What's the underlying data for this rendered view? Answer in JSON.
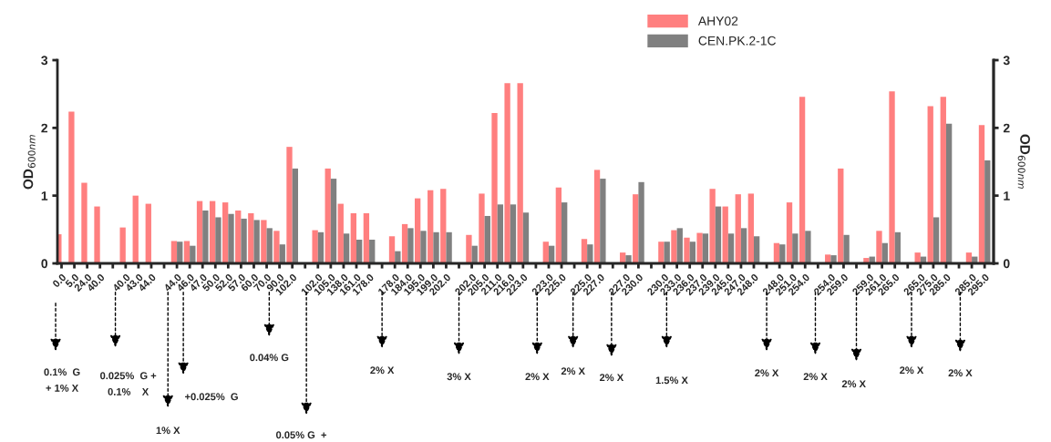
{
  "chart_data": {
    "type": "bar",
    "categories": [
      "0.0",
      "5.0",
      "24.0",
      "40.0",
      null,
      "40.0",
      "43.0",
      "44.0",
      null,
      "44.0",
      "46.0",
      "47.0",
      "50.0",
      "52.0",
      "57.0",
      "60.0",
      "70.0",
      "90.0",
      "102.0",
      null,
      "102.0",
      "105.0",
      "138.0",
      "161.0",
      "178.0",
      null,
      "178.0",
      "184.0",
      "195.0",
      "199.0",
      "202.0",
      null,
      "202.0",
      "205.0",
      "211.0",
      "216.0",
      "223.0",
      null,
      "223.0",
      "225.0",
      null,
      "225.0",
      "227.0",
      null,
      "227.0",
      "230.0",
      null,
      "230.0",
      "233.0",
      "236.0",
      "237.0",
      "239.0",
      "245.0",
      "247.0",
      "248.0",
      null,
      "248.0",
      "251.0",
      "254.0",
      null,
      "254.0",
      "259.0",
      null,
      "259.0",
      "261.0",
      "265.0",
      null,
      "265.0",
      "275.0",
      "285.0",
      null,
      "285.0",
      "295.0"
    ],
    "series": [
      {
        "name": "AHY02",
        "color": "#ff7f7f",
        "values": [
          0.43,
          2.24,
          1.19,
          0.84,
          null,
          0.53,
          1.0,
          0.88,
          null,
          0.33,
          0.33,
          0.92,
          0.92,
          0.9,
          0.78,
          0.74,
          0.64,
          0.48,
          1.72,
          null,
          0.49,
          1.4,
          0.88,
          0.74,
          0.74,
          null,
          0.4,
          0.58,
          0.96,
          1.08,
          1.1,
          null,
          0.42,
          1.03,
          2.22,
          2.66,
          2.66,
          null,
          0.32,
          1.12,
          null,
          0.36,
          1.38,
          null,
          0.16,
          1.02,
          null,
          0.32,
          0.49,
          0.38,
          0.45,
          1.1,
          0.84,
          1.02,
          1.03,
          null,
          0.3,
          0.9,
          2.46,
          null,
          0.13,
          1.4,
          null,
          0.08,
          0.48,
          2.54,
          null,
          0.16,
          2.32,
          2.46,
          null,
          0.16,
          2.04
        ]
      },
      {
        "name": "CEN.PK.2-1C",
        "color": "#808080",
        "values": [
          null,
          null,
          null,
          null,
          null,
          null,
          null,
          null,
          null,
          0.32,
          0.26,
          0.78,
          0.68,
          0.73,
          0.66,
          0.64,
          0.52,
          0.28,
          1.4,
          null,
          0.46,
          1.25,
          0.44,
          0.35,
          0.35,
          null,
          0.18,
          0.52,
          0.48,
          0.46,
          0.46,
          null,
          0.26,
          0.7,
          0.87,
          0.87,
          0.75,
          null,
          0.26,
          0.9,
          null,
          0.28,
          1.25,
          null,
          0.12,
          1.2,
          null,
          0.32,
          0.52,
          0.32,
          0.44,
          0.84,
          0.44,
          0.52,
          0.4,
          null,
          0.28,
          0.44,
          0.48,
          null,
          0.12,
          0.42,
          null,
          0.1,
          0.3,
          0.46,
          null,
          0.1,
          0.68,
          2.06,
          null,
          0.1,
          1.52
        ]
      }
    ],
    "ylabel": "OD$_{600nm}$",
    "y2label": "OD$_{600nm}$",
    "ylim": [
      0,
      3
    ],
    "yticks": [
      0,
      1,
      2,
      3
    ],
    "y2lim": [
      0,
      3
    ],
    "y2ticks": [
      0,
      1,
      2,
      3
    ],
    "legend": "top right",
    "grid": false,
    "annotations": [
      "0.1%  G\n+ 1% X",
      "0.025%  G +\n0.1%    X",
      "1% X",
      "+0.025%  G",
      "0.04% G",
      "0.05% G  +",
      "2% X",
      "3% X",
      "2% X",
      "2% X",
      "2% X",
      "1.5% X",
      "2% X",
      "2% X",
      "2% X",
      "2% X",
      "2% X"
    ]
  }
}
